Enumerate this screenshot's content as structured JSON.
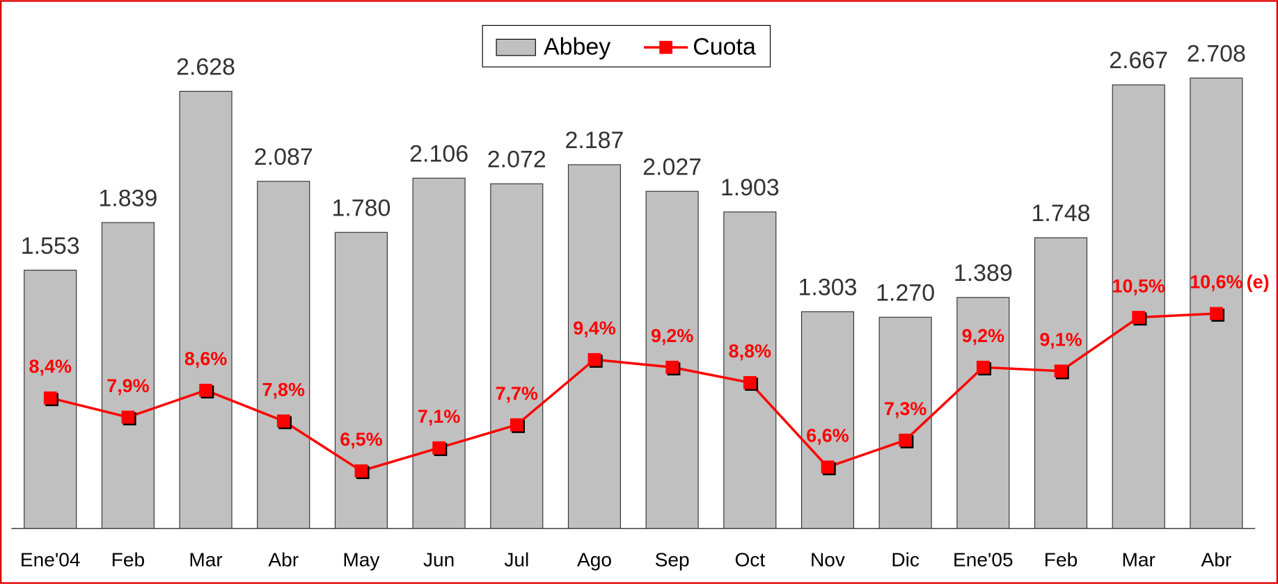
{
  "chart_data": {
    "type": "bar-line",
    "categories": [
      "Ene'04",
      "Feb",
      "Mar",
      "Abr",
      "May",
      "Jun",
      "Jul",
      "Ago",
      "Sep",
      "Oct",
      "Nov",
      "Dic",
      "Ene'05",
      "Feb",
      "Mar",
      "Abr"
    ],
    "series": [
      {
        "name": "Abbey",
        "type": "bar",
        "color": "#c0c0c0",
        "values": [
          1553,
          1839,
          2628,
          2087,
          1780,
          2106,
          2072,
          2187,
          2027,
          1903,
          1303,
          1270,
          1389,
          1748,
          2667,
          2708
        ],
        "value_labels": [
          "1.553",
          "1.839",
          "2.628",
          "2.087",
          "1.780",
          "2.106",
          "2.072",
          "2.187",
          "2.027",
          "1.903",
          "1.303",
          "1.270",
          "1.389",
          "1.748",
          "2.667",
          "2.708"
        ]
      },
      {
        "name": "Cuota",
        "type": "line",
        "axis": "y2",
        "color": "#ff0000",
        "values": [
          8.4,
          7.9,
          8.6,
          7.8,
          6.5,
          7.1,
          7.7,
          9.4,
          9.2,
          8.8,
          6.6,
          7.3,
          9.2,
          9.1,
          10.5,
          10.6
        ],
        "value_labels": [
          "8,4%",
          "7,9%",
          "8,6%",
          "7,8%",
          "6,5%",
          "7,1%",
          "7,7%",
          "9,4%",
          "9,2%",
          "8,8%",
          "6,6%",
          "7,3%",
          "9,2%",
          "9,1%",
          "10,5%",
          "10,6%"
        ]
      }
    ],
    "annotation": "(e)",
    "ylim": [
      0,
      3000
    ],
    "y2lim": [
      5,
      18
    ],
    "legend": "top"
  }
}
